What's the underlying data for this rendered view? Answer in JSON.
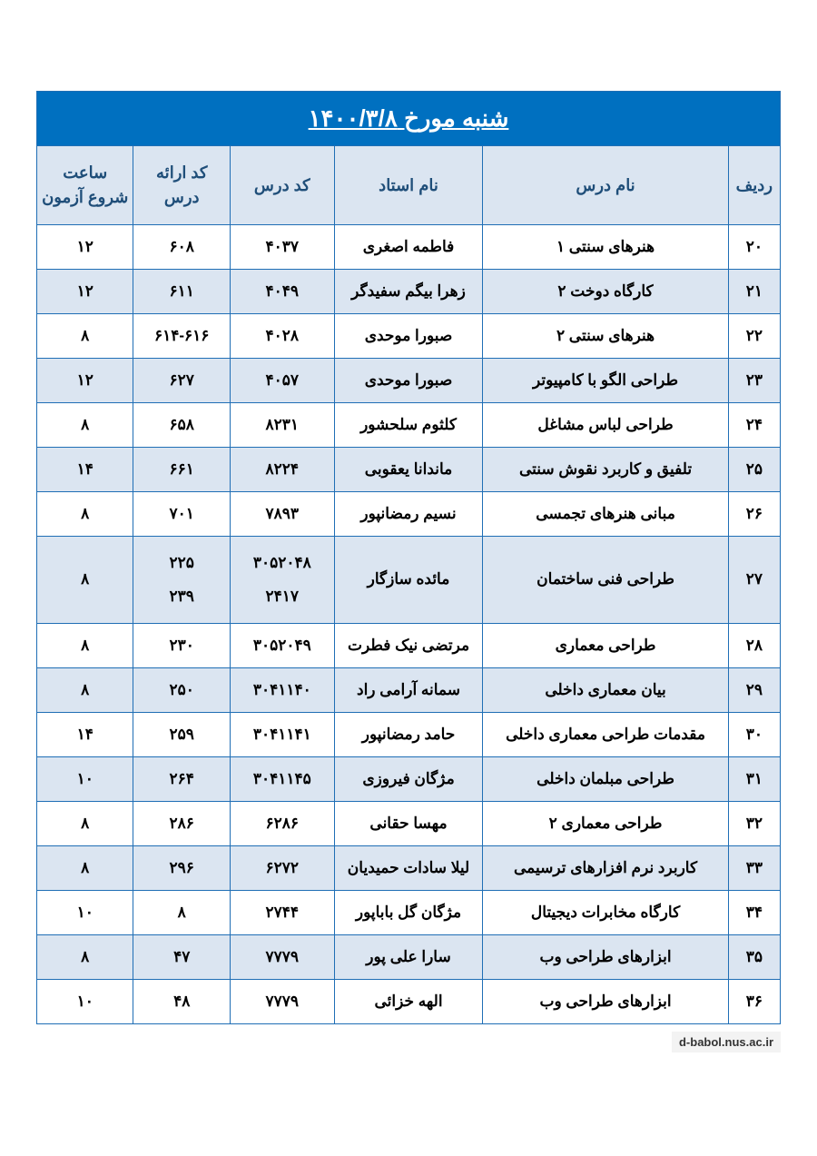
{
  "title": "شنبه مورخ   ۱۴۰۰/۳/۸",
  "footer": "d-babol.nus.ac.ir",
  "colors": {
    "title_bg": "#0070c0",
    "title_fg": "#ffffff",
    "header_bg": "#dbe5f1",
    "header_fg": "#1f4e79",
    "row_odd_bg": "#ffffff",
    "row_even_bg": "#dbe5f1",
    "border": "#1f6eb5",
    "text": "#000000"
  },
  "columns": [
    {
      "key": "radif",
      "label": "ردیف"
    },
    {
      "key": "dars",
      "label": "نام درس"
    },
    {
      "key": "ostad",
      "label": "نام استاد"
    },
    {
      "key": "kod",
      "label": "کد درس"
    },
    {
      "key": "eraeh",
      "label": "کد ارائه درس"
    },
    {
      "key": "time",
      "label": "ساعت شروع آزمون"
    }
  ],
  "rows": [
    {
      "radif": "۲۰",
      "dars": "هنرهای سنتی ۱",
      "ostad": "فاطمه اصغری",
      "kod": "۴۰۳۷",
      "eraeh": "۶۰۸",
      "time": "۱۲"
    },
    {
      "radif": "۲۱",
      "dars": "کارگاه دوخت ۲",
      "ostad": "زهرا بیگم سفیدگر",
      "kod": "۴۰۴۹",
      "eraeh": "۶۱۱",
      "time": "۱۲"
    },
    {
      "radif": "۲۲",
      "dars": "هنرهای سنتی ۲",
      "ostad": "صبورا موحدی",
      "kod": "۴۰۲۸",
      "eraeh": "۶۱۴-۶۱۶",
      "time": "۸"
    },
    {
      "radif": "۲۳",
      "dars": "طراحی الگو با کامپیوتر",
      "ostad": "صبورا موحدی",
      "kod": "۴۰۵۷",
      "eraeh": "۶۲۷",
      "time": "۱۲"
    },
    {
      "radif": "۲۴",
      "dars": "طراحی لباس مشاغل",
      "ostad": "کلثوم سلحشور",
      "kod": "۸۲۳۱",
      "eraeh": "۶۵۸",
      "time": "۸"
    },
    {
      "radif": "۲۵",
      "dars": "تلفیق و کاربرد نقوش سنتی",
      "ostad": "ماندانا یعقوبی",
      "kod": "۸۲۲۴",
      "eraeh": "۶۶۱",
      "time": "۱۴"
    },
    {
      "radif": "۲۶",
      "dars": "مبانی هنرهای تجمسی",
      "ostad": "نسیم رمضانپور",
      "kod": "۷۸۹۳",
      "eraeh": "۷۰۱",
      "time": "۸"
    },
    {
      "radif": "۲۷",
      "dars": "طراحی فنی ساختمان",
      "ostad": "مائده سازگار",
      "kod_lines": [
        "۳۰۵۲۰۴۸",
        "۲۴۱۷"
      ],
      "eraeh_lines": [
        "۲۲۵",
        "۲۳۹"
      ],
      "time": "۸"
    },
    {
      "radif": "۲۸",
      "dars": "طراحی معماری",
      "ostad": "مرتضی نیک فطرت",
      "kod": "۳۰۵۲۰۴۹",
      "eraeh": "۲۳۰",
      "time": "۸"
    },
    {
      "radif": "۲۹",
      "dars": "بیان معماری داخلی",
      "ostad": "سمانه آرامی راد",
      "kod": "۳۰۴۱۱۴۰",
      "eraeh": "۲۵۰",
      "time": "۸"
    },
    {
      "radif": "۳۰",
      "dars": "مقدمات طراحی معماری داخلی",
      "ostad": "حامد رمضانپور",
      "kod": "۳۰۴۱۱۴۱",
      "eraeh": "۲۵۹",
      "time": "۱۴"
    },
    {
      "radif": "۳۱",
      "dars": "طراحی مبلمان داخلی",
      "ostad": "مژگان فیروزی",
      "kod": "۳۰۴۱۱۴۵",
      "eraeh": "۲۶۴",
      "time": "۱۰"
    },
    {
      "radif": "۳۲",
      "dars": "طراحی معماری ۲",
      "ostad": "مهسا حقانی",
      "kod": "۶۲۸۶",
      "eraeh": "۲۸۶",
      "time": "۸"
    },
    {
      "radif": "۳۳",
      "dars": "کاربرد نرم افزارهای ترسیمی",
      "ostad": "لیلا سادات حمیدیان",
      "kod": "۶۲۷۲",
      "eraeh": "۲۹۶",
      "time": "۸"
    },
    {
      "radif": "۳۴",
      "dars": "کارگاه مخابرات دیجیتال",
      "ostad": "مژگان گل باباپور",
      "kod": "۲۷۴۴",
      "eraeh": "۸",
      "time": "۱۰"
    },
    {
      "radif": "۳۵",
      "dars": "ابزارهای طراحی وب",
      "ostad": "سارا علی پور",
      "kod": "۷۷۷۹",
      "eraeh": "۴۷",
      "time": "۸"
    },
    {
      "radif": "۳۶",
      "dars": "ابزارهای طراحی وب",
      "ostad": "الهه خزائی",
      "kod": "۷۷۷۹",
      "eraeh": "۴۸",
      "time": "۱۰"
    }
  ]
}
